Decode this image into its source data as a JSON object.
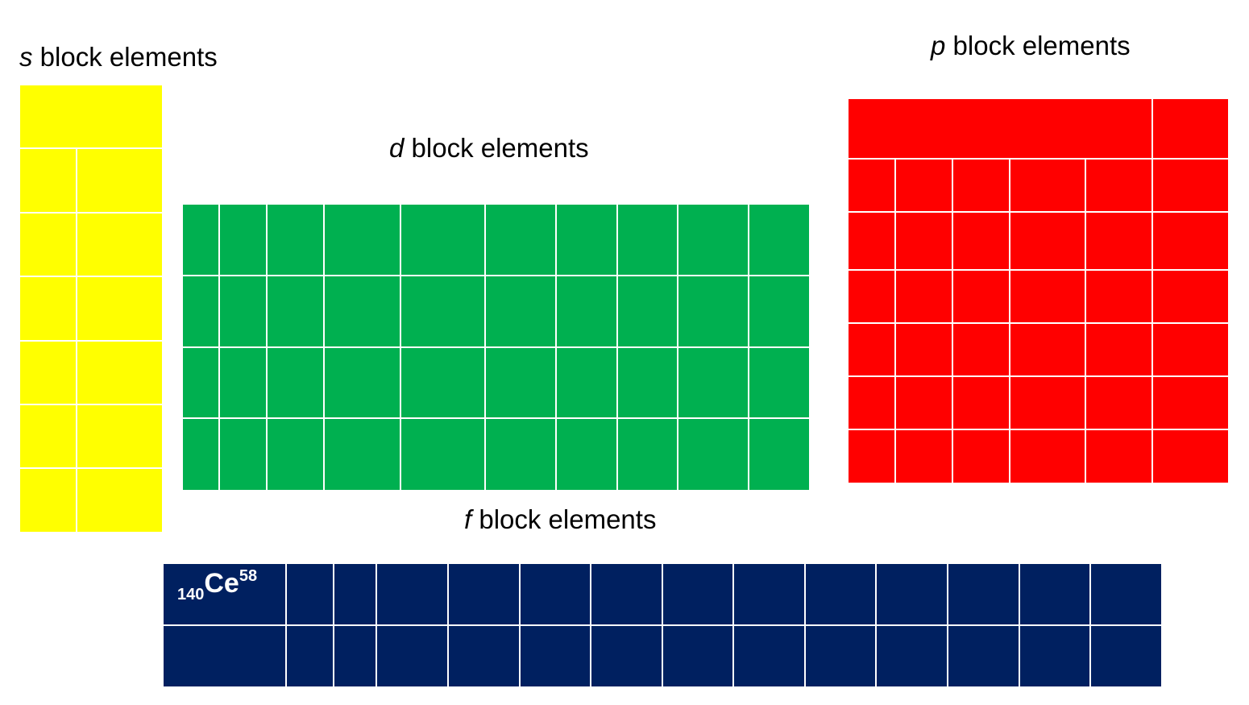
{
  "blocks": {
    "s": {
      "prefix": "s",
      "suffix": " block elements",
      "color": "#ffff00",
      "columns": 2,
      "rows": 7
    },
    "d": {
      "prefix": "d",
      "suffix": " block elements",
      "color": "#00b050",
      "columns": 10,
      "rows": 4
    },
    "p": {
      "prefix": "p",
      "suffix": " block elements",
      "color": "#ff0000",
      "columns": 6,
      "rows": 7
    },
    "f": {
      "prefix": "f",
      "suffix": " block elements",
      "color": "#002060",
      "columns": 14,
      "rows": 2
    }
  },
  "f_first_element": {
    "mass_number": "140",
    "symbol": "Ce",
    "atomic_number": "58"
  }
}
